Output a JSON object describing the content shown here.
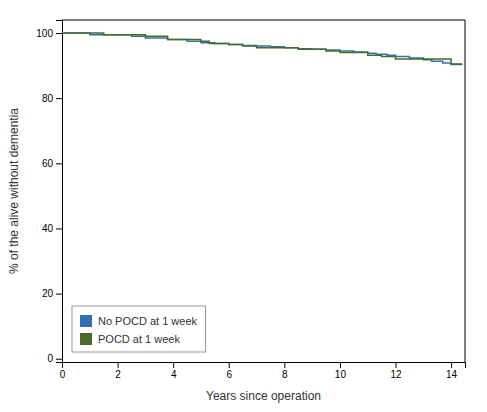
{
  "chart_data": {
    "type": "line",
    "xlabel": "Years since operation",
    "ylabel": "% of the alive without dementia",
    "xlim": [
      0,
      14.5
    ],
    "ylim": [
      -1,
      104
    ],
    "xticks": [
      0,
      2,
      4,
      6,
      8,
      10,
      12,
      14
    ],
    "yticks": [
      0,
      20,
      40,
      60,
      80,
      100
    ],
    "grid": false,
    "legend": "lower left",
    "series": [
      {
        "name": "No POCD at 1 week",
        "color": "#3070b0",
        "x": [
          0,
          1.0,
          1.0,
          2.5,
          2.5,
          3.0,
          3.0,
          3.8,
          3.8,
          4.5,
          4.5,
          5.0,
          5.0,
          5.5,
          5.5,
          6.0,
          6.0,
          6.5,
          6.5,
          7.0,
          7.0,
          7.5,
          7.5,
          8.0,
          8.0,
          8.5,
          8.5,
          9.0,
          9.0,
          9.5,
          9.5,
          10.0,
          10.0,
          10.5,
          10.5,
          11.0,
          11.0,
          11.3,
          11.3,
          11.7,
          11.7,
          12.0,
          12.0,
          12.5,
          12.5,
          13.0,
          13.0,
          13.3,
          13.3,
          13.7,
          13.7,
          14.0,
          14.0,
          14.4
        ],
        "values": [
          100,
          100,
          99.5,
          99.5,
          99.0,
          99.0,
          98.5,
          98.5,
          98.0,
          98.0,
          97.5,
          97.5,
          97.0,
          97.0,
          96.8,
          96.8,
          96.5,
          96.5,
          96.2,
          96.2,
          96.0,
          96.0,
          95.8,
          95.8,
          95.5,
          95.5,
          95.2,
          95.2,
          95.0,
          95.0,
          94.8,
          94.8,
          94.5,
          94.5,
          94.2,
          94.2,
          93.8,
          93.8,
          93.5,
          93.5,
          93.2,
          93.2,
          92.8,
          92.8,
          92.3,
          92.3,
          91.8,
          91.8,
          91.3,
          91.3,
          90.8,
          90.8,
          90.3,
          90.3
        ]
      },
      {
        "name": "POCD at 1 week",
        "color": "#4a6a28",
        "x": [
          0,
          1.5,
          1.5,
          3.0,
          3.0,
          3.8,
          3.8,
          5.0,
          5.0,
          5.3,
          5.3,
          6.0,
          6.0,
          6.5,
          6.5,
          7.0,
          7.0,
          8.5,
          8.5,
          9.5,
          9.5,
          10.0,
          10.0,
          11.0,
          11.0,
          11.5,
          11.5,
          12.0,
          12.0,
          14.0,
          14.0,
          14.4
        ],
        "values": [
          100,
          100,
          99.5,
          99.5,
          99.0,
          99.0,
          98.0,
          98.0,
          97.5,
          97.5,
          96.8,
          96.8,
          96.5,
          96.5,
          96.0,
          96.0,
          95.5,
          95.5,
          95.0,
          95.0,
          94.5,
          94.5,
          94.0,
          94.0,
          93.2,
          93.2,
          92.8,
          92.8,
          92.0,
          92.0,
          90.5,
          90.5
        ]
      }
    ]
  }
}
